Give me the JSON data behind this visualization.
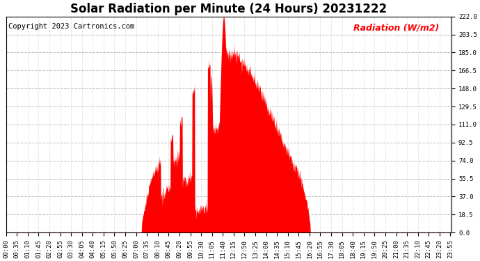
{
  "title": "Solar Radiation per Minute (24 Hours) 20231222",
  "copyright_text": "Copyright 2023 Cartronics.com",
  "ylabel": "Radiation (W/m2)",
  "ylabel_color": "#FF0000",
  "fill_color": "#FF0000",
  "background_color": "#FFFFFF",
  "grid_color": "#BBBBBB",
  "dashed_line_color": "#FF0000",
  "ylim": [
    0.0,
    222.0
  ],
  "yticks": [
    0.0,
    18.5,
    37.0,
    55.5,
    74.0,
    92.5,
    111.0,
    129.5,
    148.0,
    166.5,
    185.0,
    203.5,
    222.0
  ],
  "total_minutes": 1440,
  "title_fontsize": 12,
  "tick_fontsize": 6.5,
  "label_fontsize": 9,
  "copyright_fontsize": 7.5,
  "figsize": [
    6.9,
    3.75
  ],
  "dpi": 100
}
